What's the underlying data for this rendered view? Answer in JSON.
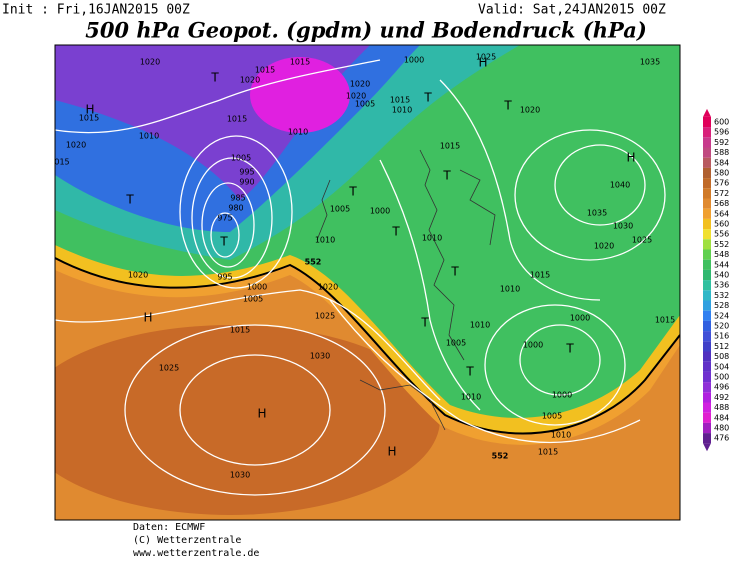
{
  "header": {
    "init": "Init : Fri,16JAN2015 00Z",
    "valid": "Valid: Sat,24JAN2015 00Z",
    "title": "500 hPa Geopot. (gpdm) und Bodendruck (hPa)"
  },
  "colorbar": {
    "levels": [
      600,
      596,
      592,
      588,
      584,
      580,
      576,
      572,
      568,
      564,
      560,
      556,
      552,
      548,
      544,
      540,
      536,
      532,
      528,
      524,
      520,
      516,
      512,
      508,
      504,
      500,
      496,
      492,
      488,
      484,
      480,
      476
    ],
    "colors": [
      "#e0005a",
      "#d8207a",
      "#c83a8c",
      "#c04a80",
      "#b85a60",
      "#b06030",
      "#c06a28",
      "#d07a28",
      "#e08a30",
      "#f0a030",
      "#f2c020",
      "#f0e030",
      "#a0e040",
      "#60d050",
      "#40c060",
      "#30b870",
      "#30c0a0",
      "#30b8c8",
      "#30a0e0",
      "#3080f0",
      "#3060e0",
      "#4050d8",
      "#4040c8",
      "#5030c0",
      "#6030c8",
      "#7030d0",
      "#9030d8",
      "#b020e0",
      "#d020e0",
      "#e020d0",
      "#a020c0",
      "#602090"
    ]
  },
  "map_labels": {
    "isobars": [
      "1020",
      "1020",
      "1015",
      "1015",
      "1005",
      "1000",
      "1010",
      "1015",
      "1020",
      "1020",
      "1015",
      "1010",
      "1020",
      "1015",
      "1010",
      "1005",
      "995",
      "990",
      "985",
      "980",
      "975",
      "995",
      "1000",
      "1005",
      "1010",
      "1005",
      "1000",
      "1015",
      "1020",
      "1035",
      "1040",
      "1035",
      "1030",
      "1025",
      "1020",
      "1015",
      "1010",
      "1010",
      "1005",
      "1000",
      "1000",
      "1000",
      "1005",
      "1010",
      "1015",
      "1010",
      "1020",
      "1015",
      "1020",
      "1025",
      "1025",
      "1030",
      "1030",
      "1015",
      "1010",
      "1025",
      "015"
    ],
    "centers": [
      "H",
      "T",
      "T",
      "T",
      "H",
      "T",
      "T",
      "T",
      "T",
      "T",
      "T",
      "T",
      "H",
      "H",
      "H",
      "H",
      "T",
      "T"
    ],
    "contour_552": [
      "552",
      "552"
    ]
  },
  "footer": {
    "source": "Daten: ECMWF",
    "copyright": "(C) Wetterzentrale",
    "url": "www.wetterzentrale.de"
  }
}
